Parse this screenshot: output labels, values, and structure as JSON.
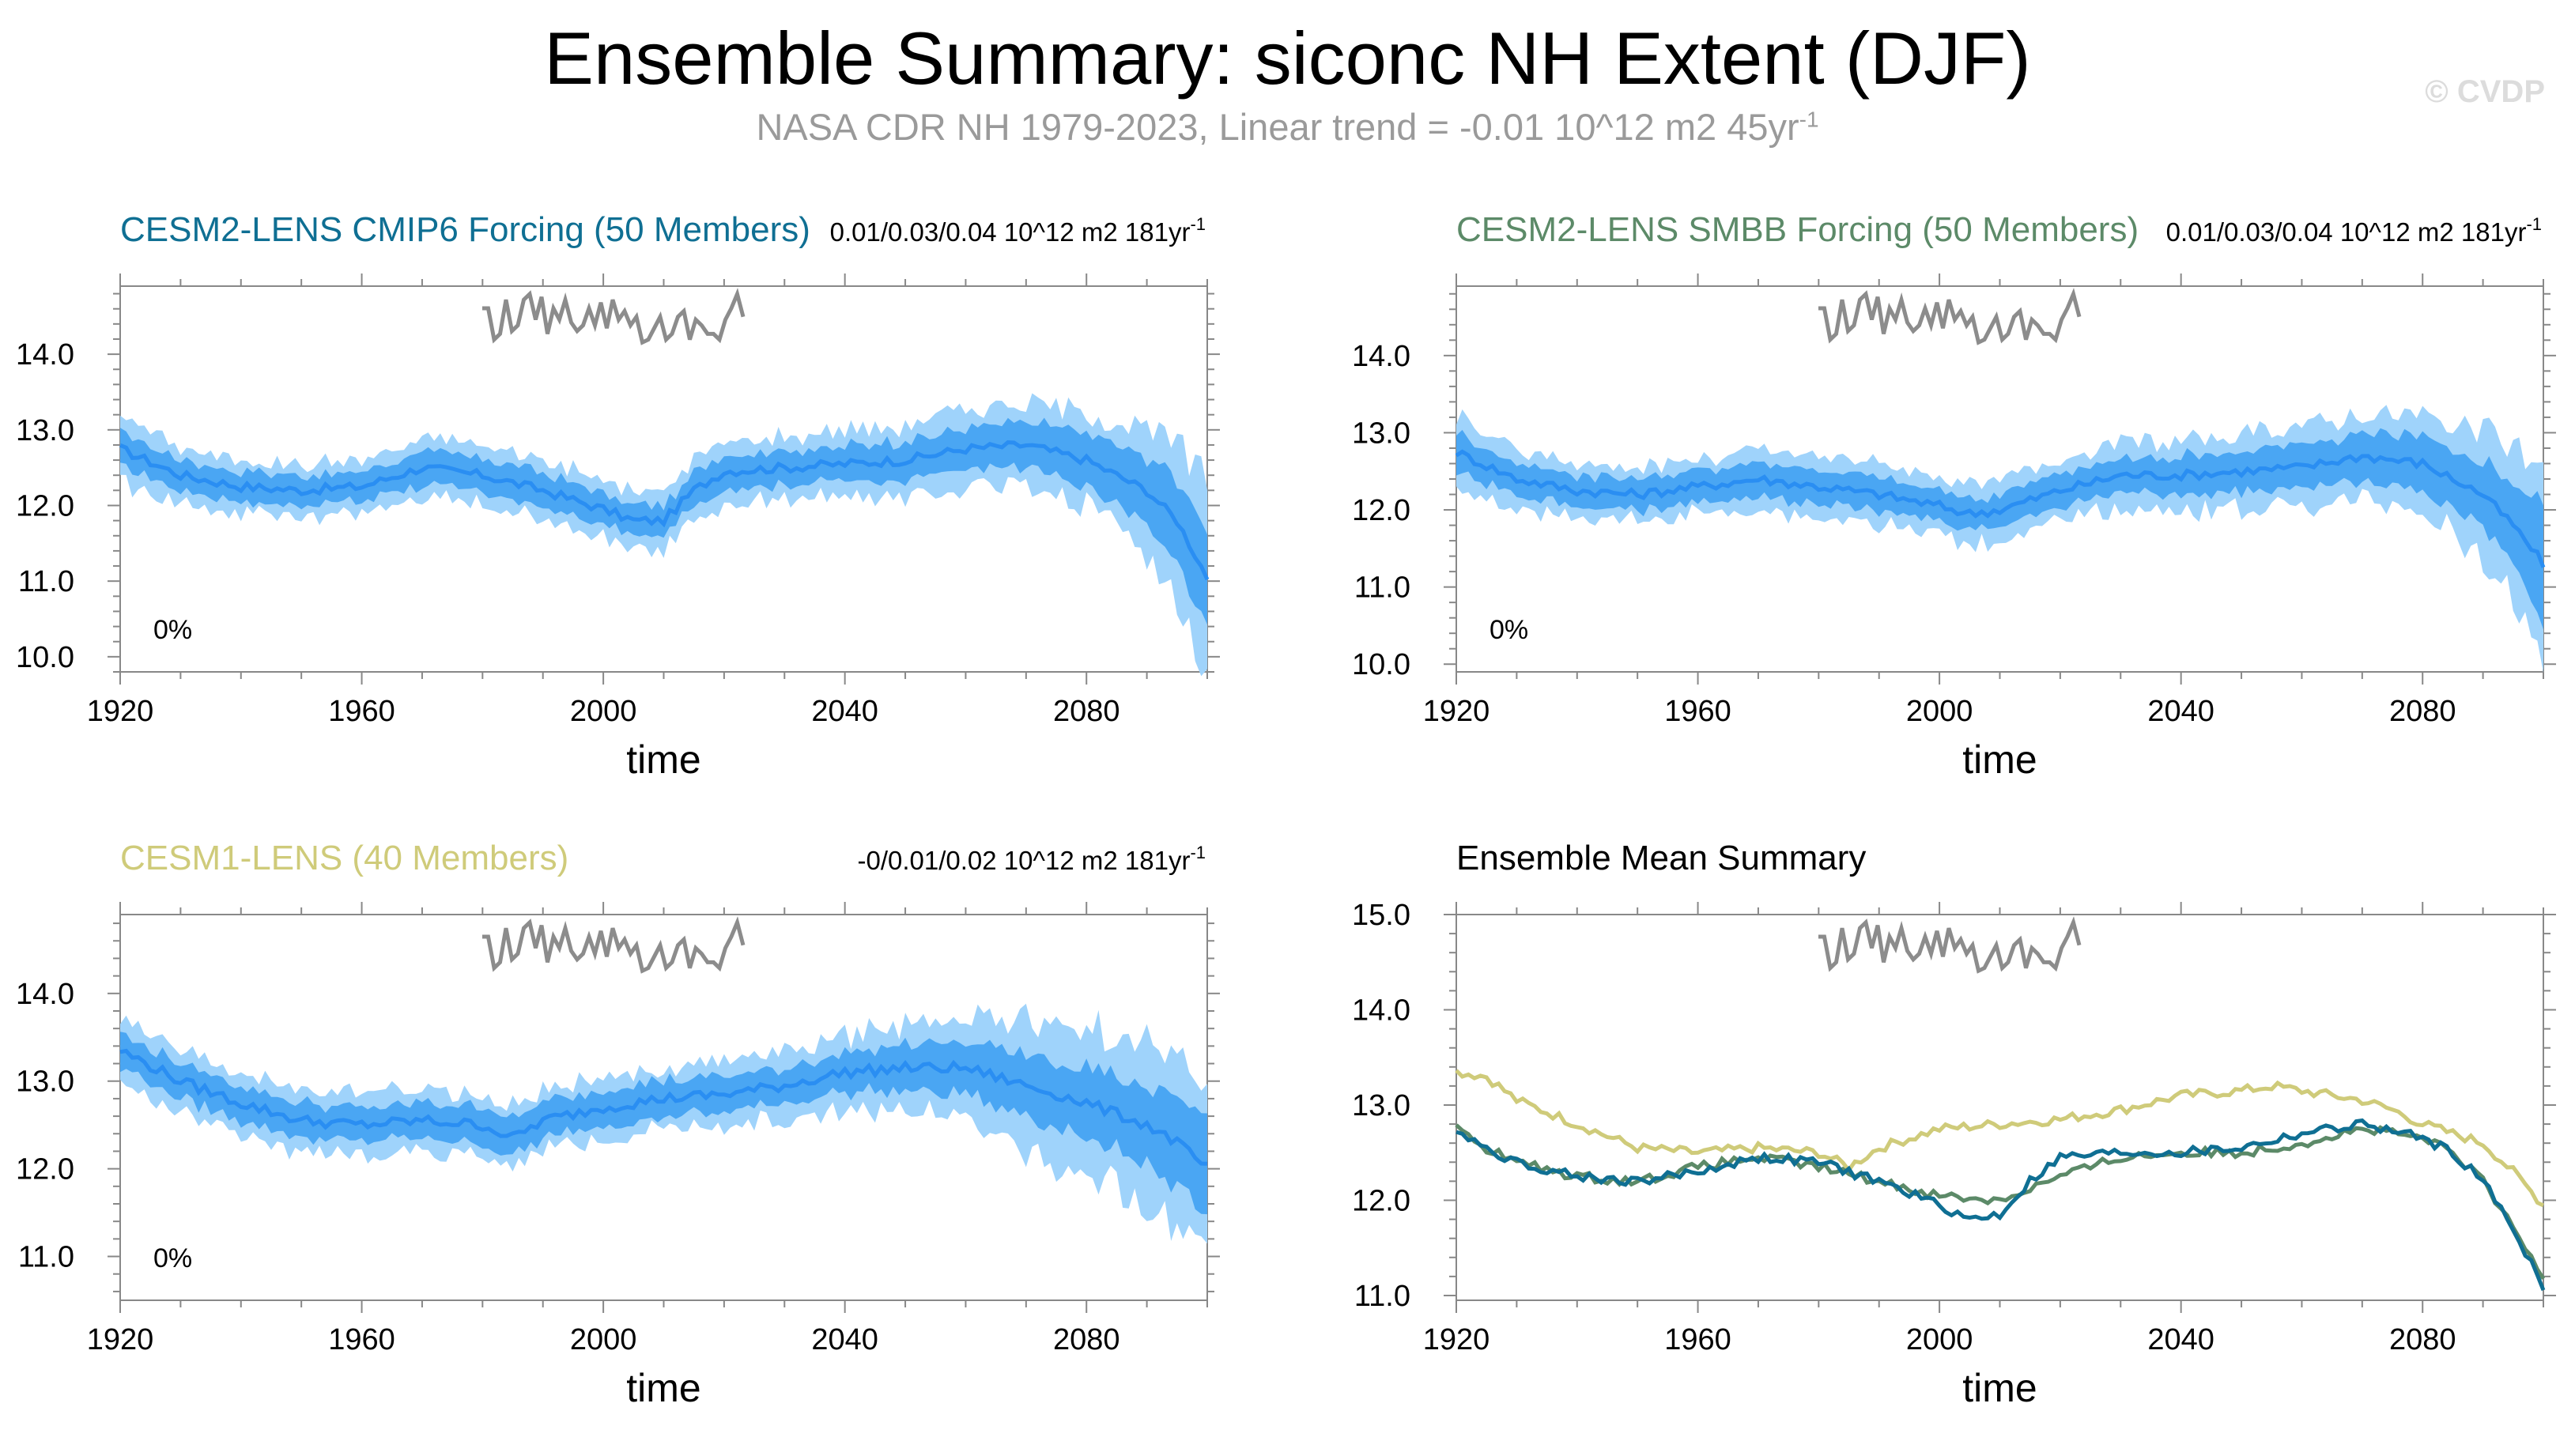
{
  "header": {
    "title": "Ensemble Summary: siconc NH Extent (DJF)",
    "subtitle_main": "NASA CDR NH 1979-2023, Linear trend = -0.01 10^12 m2 45yr",
    "subtitle_sup": "-1",
    "watermark": "© CVDP"
  },
  "colors": {
    "band_outer": "#9fd3fb",
    "band_inner": "#4aa6f3",
    "mean_line": "#2a8ef2",
    "obs_line": "#8c8c8c",
    "cesm2_cmip6": "#0f6f93",
    "cesm2_smbb": "#5c8a68",
    "cesm1": "#cfcb7a"
  },
  "chart_data": [
    {
      "id": "cmip6",
      "type": "area",
      "title": "CESM2-LENS CMIP6 Forcing (50 Members)",
      "title_color": "#0f6f93",
      "trend_main": "0.01/0.03/0.04 10^12 m2 181yr",
      "trend_sup": "-1",
      "pct_label": "0%",
      "xlabel": "time",
      "xlim": [
        1920,
        2100
      ],
      "xticks": [
        "1920",
        "1960",
        "2000",
        "2040",
        "2080"
      ],
      "ylim": [
        9.8,
        14.9
      ],
      "yticks": [
        "10.0",
        "11.0",
        "12.0",
        "13.0",
        "14.0"
      ],
      "x": [
        1920,
        1930,
        1940,
        1950,
        1960,
        1970,
        1980,
        1990,
        2000,
        2005,
        2010,
        2015,
        2020,
        2030,
        2040,
        2050,
        2060,
        2070,
        2080,
        2090,
        2095,
        2100
      ],
      "series_mean": [
        12.75,
        12.4,
        12.25,
        12.2,
        12.25,
        12.5,
        12.4,
        12.2,
        11.95,
        11.8,
        11.8,
        12.2,
        12.45,
        12.5,
        12.55,
        12.6,
        12.75,
        12.8,
        12.6,
        12.2,
        11.8,
        11.05
      ],
      "inner_halfwidth": [
        0.25,
        0.2,
        0.2,
        0.2,
        0.2,
        0.22,
        0.22,
        0.22,
        0.2,
        0.2,
        0.2,
        0.22,
        0.22,
        0.22,
        0.25,
        0.25,
        0.28,
        0.3,
        0.35,
        0.45,
        0.55,
        0.7
      ],
      "outer_halfwidth": [
        0.45,
        0.38,
        0.35,
        0.35,
        0.35,
        0.38,
        0.4,
        0.4,
        0.38,
        0.38,
        0.38,
        0.4,
        0.42,
        0.42,
        0.45,
        0.48,
        0.52,
        0.55,
        0.62,
        0.8,
        1.0,
        1.25
      ]
    },
    {
      "id": "smbb",
      "type": "area",
      "title": "CESM2-LENS SMBB Forcing (50 Members)",
      "title_color": "#5c8a68",
      "trend_main": "0.01/0.03/0.04 10^12 m2 181yr",
      "trend_sup": "-1",
      "pct_label": "0%",
      "xlabel": "time",
      "xlim": [
        1920,
        2100
      ],
      "xticks": [
        "1920",
        "1960",
        "2000",
        "2040",
        "2080"
      ],
      "ylim": [
        9.9,
        14.9
      ],
      "yticks": [
        "10.0",
        "11.0",
        "12.0",
        "13.0",
        "14.0"
      ],
      "x": [
        1920,
        1930,
        1940,
        1950,
        1960,
        1970,
        1980,
        1990,
        2000,
        2005,
        2010,
        2020,
        2030,
        2040,
        2050,
        2060,
        2070,
        2080,
        2090,
        2095,
        2100
      ],
      "series_mean": [
        12.75,
        12.4,
        12.25,
        12.2,
        12.3,
        12.4,
        12.3,
        12.2,
        12.05,
        11.95,
        12.0,
        12.25,
        12.45,
        12.45,
        12.5,
        12.55,
        12.7,
        12.6,
        12.2,
        11.8,
        11.3
      ],
      "inner_halfwidth": [
        0.25,
        0.2,
        0.2,
        0.2,
        0.2,
        0.22,
        0.22,
        0.22,
        0.2,
        0.2,
        0.2,
        0.22,
        0.22,
        0.25,
        0.25,
        0.28,
        0.3,
        0.35,
        0.45,
        0.55,
        0.7
      ],
      "outer_halfwidth": [
        0.45,
        0.38,
        0.35,
        0.35,
        0.35,
        0.38,
        0.4,
        0.4,
        0.38,
        0.38,
        0.38,
        0.42,
        0.42,
        0.45,
        0.48,
        0.52,
        0.55,
        0.62,
        0.8,
        1.0,
        1.2
      ]
    },
    {
      "id": "cesm1",
      "type": "area",
      "title": "CESM1-LENS (40 Members)",
      "title_color": "#cfcb7a",
      "trend_main": "-0/0.01/0.02 10^12 m2 181yr",
      "trend_sup": "-1",
      "pct_label": "0%",
      "xlabel": "time",
      "xlim": [
        1920,
        2100
      ],
      "xticks": [
        "1920",
        "1960",
        "2000",
        "2040",
        "2080"
      ],
      "ylim": [
        10.5,
        14.9
      ],
      "yticks": [
        "11.0",
        "12.0",
        "13.0",
        "14.0"
      ],
      "x": [
        1920,
        1930,
        1940,
        1950,
        1960,
        1970,
        1980,
        1985,
        1990,
        2000,
        2010,
        2020,
        2030,
        2040,
        2050,
        2060,
        2070,
        2080,
        2090,
        2095,
        2100
      ],
      "series_mean": [
        13.35,
        13.0,
        12.75,
        12.55,
        12.5,
        12.55,
        12.5,
        12.35,
        12.55,
        12.7,
        12.8,
        12.85,
        12.95,
        13.1,
        13.15,
        13.15,
        12.95,
        12.75,
        12.5,
        12.3,
        12.0
      ],
      "inner_halfwidth": [
        0.2,
        0.2,
        0.2,
        0.2,
        0.2,
        0.2,
        0.2,
        0.2,
        0.2,
        0.2,
        0.2,
        0.2,
        0.22,
        0.22,
        0.25,
        0.3,
        0.35,
        0.4,
        0.45,
        0.5,
        0.55
      ],
      "outer_halfwidth": [
        0.35,
        0.35,
        0.35,
        0.35,
        0.35,
        0.35,
        0.35,
        0.35,
        0.35,
        0.35,
        0.35,
        0.38,
        0.4,
        0.42,
        0.48,
        0.6,
        0.75,
        0.85,
        0.9,
        0.95,
        1.1
      ]
    },
    {
      "id": "summary",
      "type": "line",
      "title": "Ensemble Mean Summary",
      "title_color": "#000000",
      "xlabel": "time",
      "xlim": [
        1920,
        2100
      ],
      "xticks": [
        "1920",
        "1960",
        "2000",
        "2040",
        "2080"
      ],
      "ylim": [
        10.95,
        15.0
      ],
      "yticks": [
        "11.0",
        "12.0",
        "13.0",
        "14.0",
        "15.0"
      ],
      "series": [
        {
          "name": "CESM1-LENS",
          "color": "#cfcb7a",
          "x": [
            1920,
            1925,
            1930,
            1940,
            1950,
            1960,
            1970,
            1980,
            1985,
            1990,
            2000,
            2010,
            2020,
            2030,
            2040,
            2050,
            2055,
            2060,
            2070,
            2075,
            2080,
            2090,
            2095,
            2100
          ],
          "values": [
            13.35,
            13.3,
            13.05,
            12.8,
            12.55,
            12.5,
            12.55,
            12.5,
            12.35,
            12.55,
            12.75,
            12.8,
            12.85,
            12.95,
            13.1,
            13.15,
            13.2,
            13.15,
            13.05,
            12.95,
            12.8,
            12.6,
            12.3,
            11.95
          ]
        },
        {
          "name": "CESM2-LENS SMBB",
          "color": "#5c8a68",
          "x": [
            1920,
            1925,
            1930,
            1940,
            1950,
            1960,
            1970,
            1980,
            1990,
            2000,
            2010,
            2020,
            2030,
            2040,
            2050,
            2060,
            2070,
            2080,
            2085,
            2090,
            2095,
            2100
          ],
          "values": [
            12.75,
            12.55,
            12.4,
            12.25,
            12.2,
            12.35,
            12.45,
            12.35,
            12.2,
            12.05,
            12.0,
            12.25,
            12.45,
            12.5,
            12.5,
            12.6,
            12.75,
            12.65,
            12.5,
            12.2,
            11.7,
            11.2
          ]
        },
        {
          "name": "CESM2-LENS CMIP6",
          "color": "#0f6f93",
          "x": [
            1920,
            1925,
            1930,
            1940,
            1950,
            1960,
            1970,
            1980,
            1990,
            2000,
            2005,
            2010,
            2015,
            2020,
            2030,
            2040,
            2050,
            2060,
            2070,
            2080,
            2085,
            2090,
            2095,
            2100
          ],
          "values": [
            12.75,
            12.55,
            12.4,
            12.25,
            12.2,
            12.3,
            12.45,
            12.4,
            12.2,
            11.95,
            11.8,
            11.85,
            12.2,
            12.45,
            12.5,
            12.5,
            12.55,
            12.7,
            12.8,
            12.65,
            12.5,
            12.2,
            11.7,
            11.1
          ]
        }
      ]
    }
  ],
  "observations": {
    "name": "NASA CDR NH 1979-2023",
    "values": [
      0.75,
      0.75,
      0.2,
      0.3,
      0.9,
      0.35,
      0.45,
      0.9,
      1.0,
      0.55,
      0.95,
      0.3,
      0.75,
      0.55,
      0.9,
      0.5,
      0.35,
      0.45,
      0.75,
      0.45,
      0.85,
      0.4,
      0.9,
      0.55,
      0.7,
      0.45,
      0.6,
      0.15,
      0.2,
      0.4,
      0.6,
      0.2,
      0.3,
      0.6,
      0.7,
      0.2,
      0.55,
      0.45,
      0.3,
      0.3,
      0.2,
      0.55,
      0.75,
      1.0,
      0.6
    ]
  }
}
